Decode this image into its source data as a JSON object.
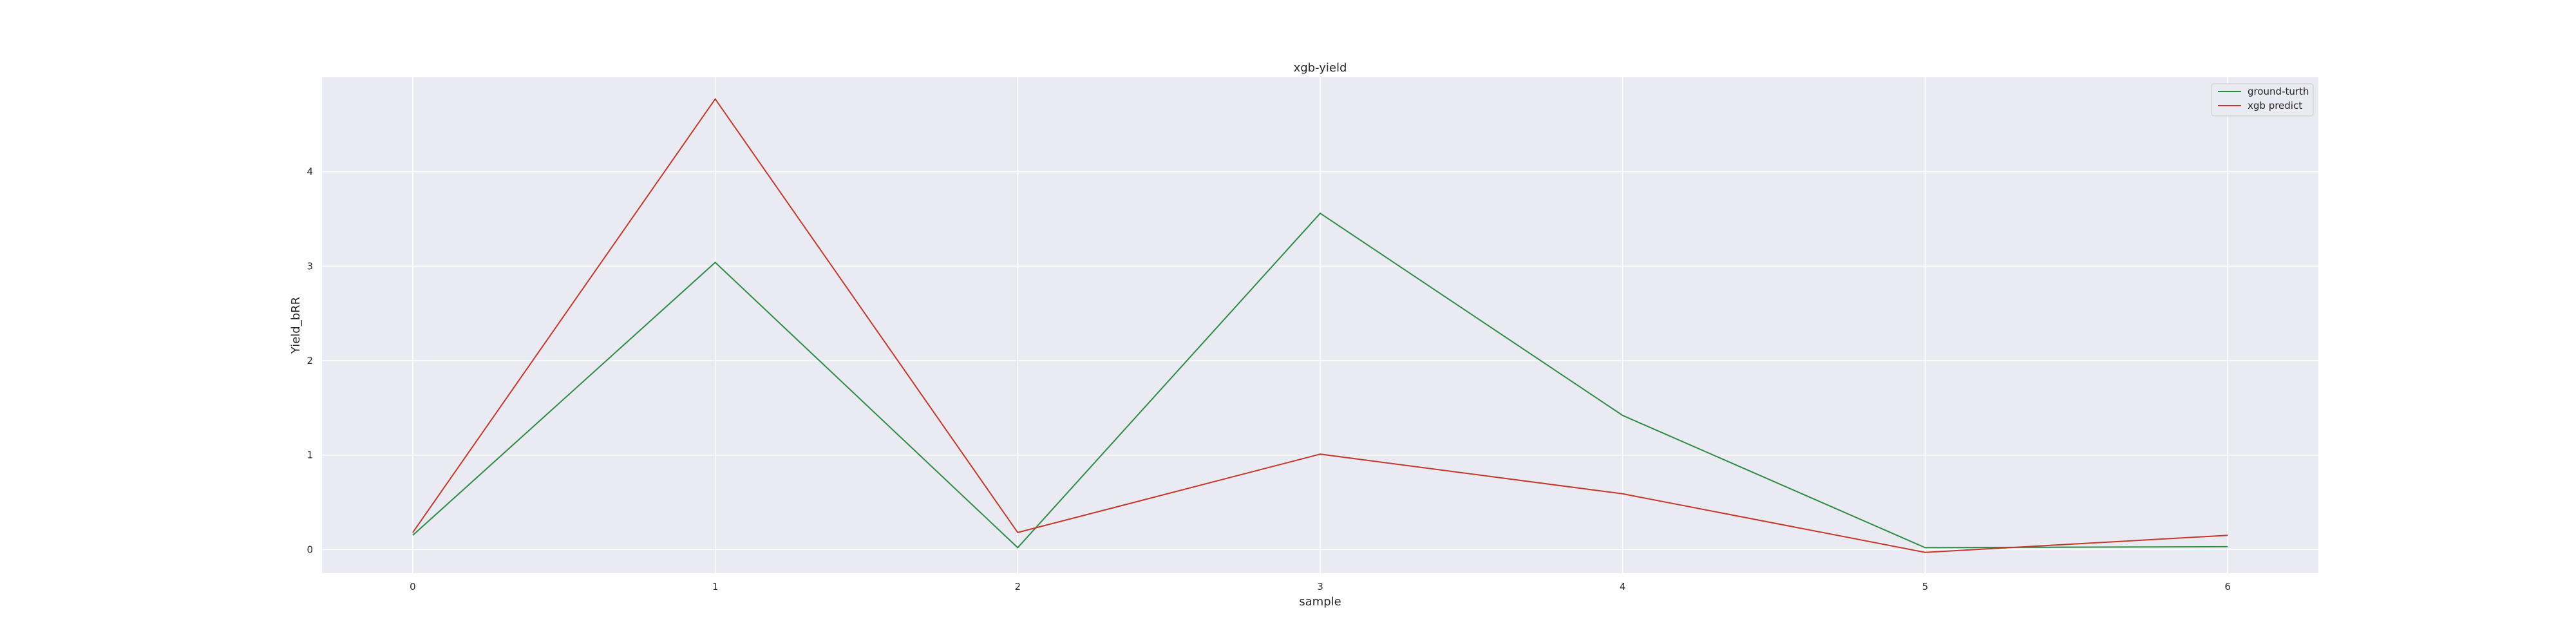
{
  "chart_data": {
    "type": "line",
    "title": "xgb-yield",
    "xlabel": "sample",
    "ylabel": "Yield_bRR",
    "x": [
      0,
      1,
      2,
      3,
      4,
      5,
      6
    ],
    "xticks": [
      "0",
      "1",
      "2",
      "3",
      "4",
      "5",
      "6"
    ],
    "yticks": [
      "0",
      "1",
      "2",
      "3",
      "4"
    ],
    "xlim": [
      -0.3,
      6.3
    ],
    "ylim": [
      -0.25,
      5.0
    ],
    "grid": true,
    "legend_position": "top-right",
    "style": {
      "background": "#eaeaf2",
      "grid_color": "#ffffff"
    },
    "series": [
      {
        "name": "ground-turth",
        "color": "#2e8b46",
        "values": [
          0.15,
          3.04,
          0.02,
          3.56,
          1.42,
          0.02,
          0.03
        ]
      },
      {
        "name": "xgb predict",
        "color": "#c0392b",
        "values": [
          0.18,
          4.77,
          0.18,
          1.01,
          0.59,
          -0.03,
          0.15
        ]
      }
    ]
  }
}
